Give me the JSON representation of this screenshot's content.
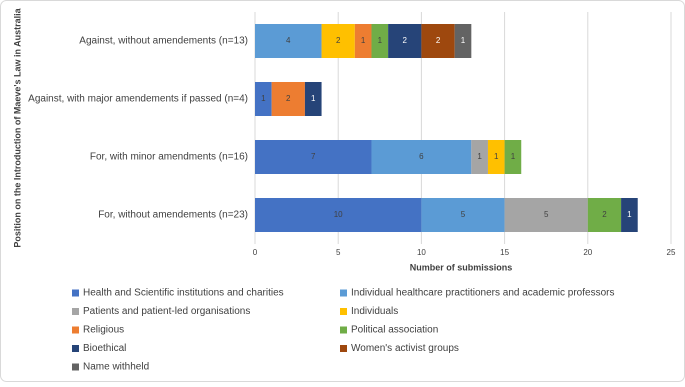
{
  "chart_data": {
    "type": "stacked_bar_horizontal",
    "x_label": "Number of submissions",
    "y_label": "Position on the Introduction of Maeve's Law in Australia",
    "categories": [
      "Against, without amendements (n=13)",
      "Against, with major amendements if passed (n=4)",
      "For, with minor amendments (n=16)",
      "For, without amendements (n=23)"
    ],
    "series": [
      {
        "name": "Health and Scientific institutions and charities",
        "color": "#4472c4",
        "values": [
          0,
          1,
          7,
          10
        ]
      },
      {
        "name": "Individual healthcare practitioners and academic professors",
        "color": "#5b9bd5",
        "values": [
          4,
          0,
          6,
          5
        ]
      },
      {
        "name": "Patients and patient-led organisations",
        "color": "#a5a5a5",
        "values": [
          0,
          0,
          1,
          5
        ]
      },
      {
        "name": "Individuals",
        "color": "#ffc000",
        "values": [
          2,
          0,
          1,
          0
        ]
      },
      {
        "name": "Religious",
        "color": "#ed7d31",
        "values": [
          1,
          2,
          0,
          0
        ]
      },
      {
        "name": "Political association",
        "color": "#70ad47",
        "values": [
          1,
          0,
          1,
          2
        ]
      },
      {
        "name": "Bioethical",
        "color": "#264478",
        "values": [
          2,
          1,
          0,
          1
        ]
      },
      {
        "name": "Women's activist groups",
        "color": "#9e480e",
        "values": [
          2,
          0,
          0,
          0
        ]
      },
      {
        "name": "Name withheld",
        "color": "#636363",
        "values": [
          1,
          0,
          0,
          0
        ]
      }
    ],
    "xlim": [
      0,
      25
    ],
    "xticks": [
      0,
      5,
      10,
      15,
      20,
      25
    ],
    "grid": true
  }
}
